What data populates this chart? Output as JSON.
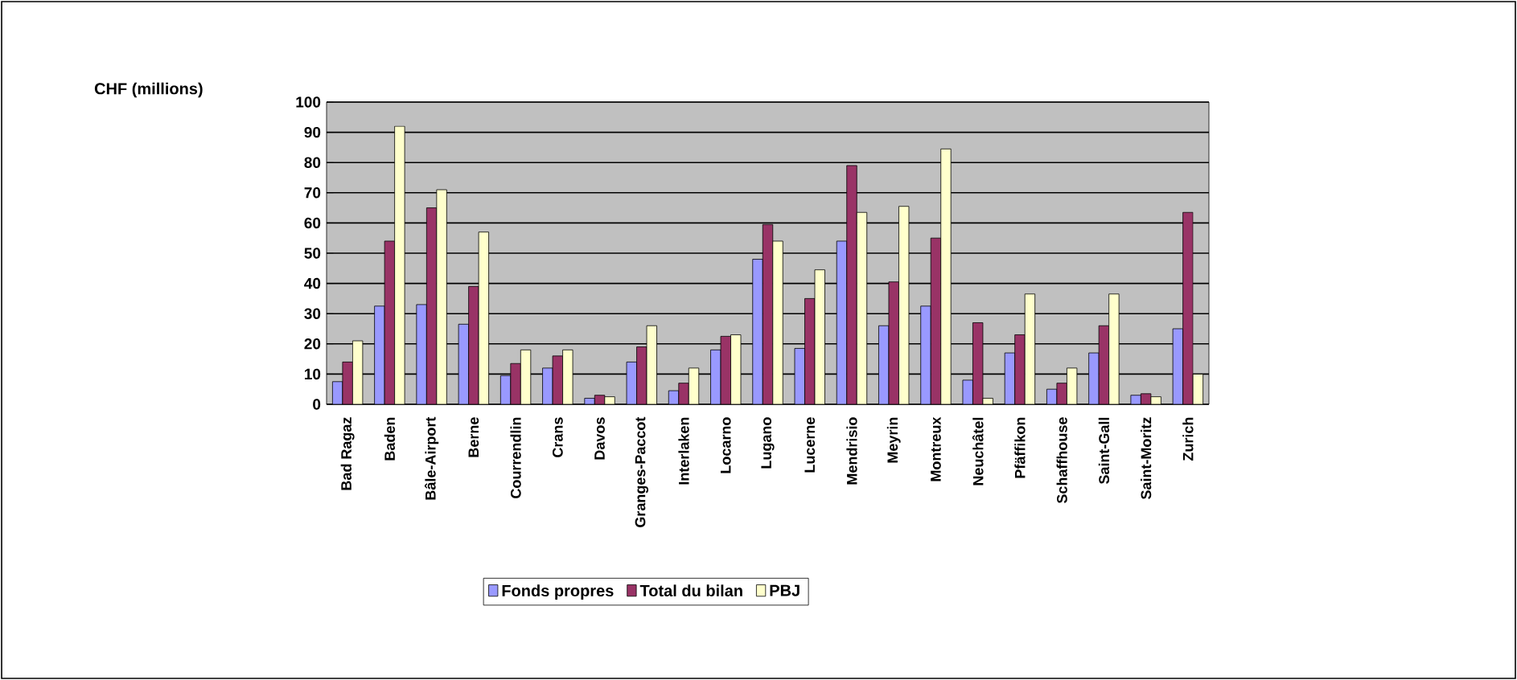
{
  "chart_data": {
    "type": "bar",
    "annotations": [
      "CHF (millions)"
    ],
    "categories": [
      "Bad Ragaz",
      "Baden",
      "Bâle-Airport",
      "Berne",
      "Courrendlin",
      "Crans",
      "Davos",
      "Granges-Paccot",
      "Interlaken",
      "Locarno",
      "Lugano",
      "Lucerne",
      "Mendrisio",
      "Meyrin",
      "Montreux",
      "Neuchâtel",
      "Pfäffikon",
      "Schaffhouse",
      "Saint-Gall",
      "Saint-Moritz",
      "Zurich"
    ],
    "series": [
      {
        "name": "Fonds propres",
        "color": "#9999ff",
        "values": [
          7.5,
          32.5,
          33,
          26.5,
          9.5,
          12,
          2,
          14,
          4.5,
          18,
          48,
          18.5,
          54,
          26,
          32.5,
          8,
          17,
          5,
          17,
          3,
          25
        ]
      },
      {
        "name": "Total du bilan",
        "color": "#993366",
        "values": [
          14,
          54,
          65,
          39,
          13.5,
          16,
          3,
          19,
          7,
          22.5,
          59.5,
          35,
          79,
          40.5,
          55,
          27,
          23,
          7,
          26,
          3.5,
          63.5
        ]
      },
      {
        "name": "PBJ",
        "color": "#ffffcc",
        "values": [
          21,
          92,
          71,
          57,
          18,
          18,
          2.5,
          26,
          12,
          23,
          54,
          44.5,
          63.5,
          65.5,
          84.5,
          2,
          36.5,
          12,
          36.5,
          2.5,
          10
        ]
      }
    ],
    "ylim": [
      0,
      100
    ],
    "yticks": [
      0,
      10,
      20,
      30,
      40,
      50,
      60,
      70,
      80,
      90,
      100
    ],
    "grid": "y",
    "legend": "bottom"
  }
}
